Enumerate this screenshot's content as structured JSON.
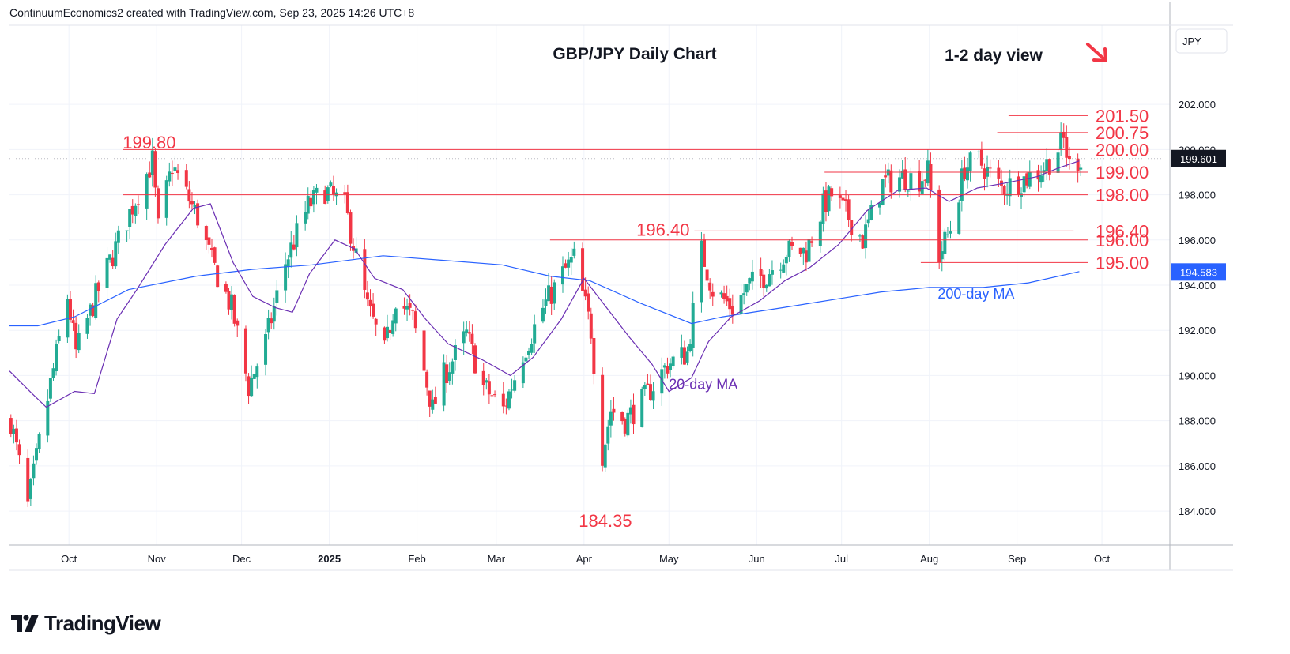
{
  "header": {
    "attribution": "ContinuumEconomics2 created with TradingView.com, Sep 23, 2025 14:26 UTC+8"
  },
  "footer": {
    "brand": "TradingView",
    "logo_icon": "tradingview-logo-icon"
  },
  "colors": {
    "up": "#22ab94",
    "down": "#f23645",
    "ma20": "#6b2fb3",
    "ma200": "#2962ff",
    "level": "#f23645",
    "annotation": "#f23645",
    "ma200_label": "#2962ff"
  },
  "chart_data": {
    "type": "candlestick",
    "title": "GBP/JPY Daily Chart",
    "subtitle": "1-2 day view",
    "currency": "JPY",
    "y_range": [
      182.5,
      205.5
    ],
    "y_ticks": [
      "184.000",
      "186.000",
      "188.000",
      "190.000",
      "192.000",
      "194.000",
      "196.000",
      "198.000",
      "200.000",
      "202.000"
    ],
    "x_range": [
      "2024-09-10",
      "2025-10-25"
    ],
    "x_ticks": [
      {
        "label": "Oct",
        "date": "2024-10-01",
        "bold": false
      },
      {
        "label": "Nov",
        "date": "2024-11-01",
        "bold": false
      },
      {
        "label": "Dec",
        "date": "2024-12-01",
        "bold": false
      },
      {
        "label": "2025",
        "date": "2025-01-01",
        "bold": true
      },
      {
        "label": "Feb",
        "date": "2025-02-01",
        "bold": false
      },
      {
        "label": "Mar",
        "date": "2025-03-01",
        "bold": false
      },
      {
        "label": "Apr",
        "date": "2025-04-01",
        "bold": false
      },
      {
        "label": "May",
        "date": "2025-05-01",
        "bold": false
      },
      {
        "label": "Jun",
        "date": "2025-06-01",
        "bold": false
      },
      {
        "label": "Jul",
        "date": "2025-07-01",
        "bold": false
      },
      {
        "label": "Aug",
        "date": "2025-08-01",
        "bold": false
      },
      {
        "label": "Sep",
        "date": "2025-09-01",
        "bold": false
      },
      {
        "label": "Oct",
        "date": "2025-10-01",
        "bold": false
      }
    ],
    "price_path": [
      [
        "2024-09-10",
        188.0
      ],
      [
        "2024-09-16",
        184.2
      ],
      [
        "2024-09-20",
        187.0
      ],
      [
        "2024-09-30",
        193.5
      ],
      [
        "2024-10-03",
        191.0
      ],
      [
        "2024-10-10",
        193.5
      ],
      [
        "2024-10-23",
        197.5
      ],
      [
        "2024-10-30",
        199.5
      ],
      [
        "2024-11-01",
        196.5
      ],
      [
        "2024-11-06",
        199.3
      ],
      [
        "2024-11-15",
        197.0
      ],
      [
        "2024-11-20",
        195.0
      ],
      [
        "2024-11-27",
        193.0
      ],
      [
        "2024-12-03",
        189.5
      ],
      [
        "2024-12-09",
        191.5
      ],
      [
        "2024-12-16",
        195.0
      ],
      [
        "2024-12-24",
        197.5
      ],
      [
        "2024-12-30",
        198.2
      ],
      [
        "2025-01-06",
        197.5
      ],
      [
        "2025-01-14",
        193.0
      ],
      [
        "2025-01-20",
        191.0
      ],
      [
        "2025-01-24",
        193.5
      ],
      [
        "2025-01-30",
        192.5
      ],
      [
        "2025-02-06",
        188.5
      ],
      [
        "2025-02-10",
        190.0
      ],
      [
        "2025-02-18",
        191.8
      ],
      [
        "2025-02-24",
        189.5
      ],
      [
        "2025-03-03",
        188.5
      ],
      [
        "2025-03-10",
        191.0
      ],
      [
        "2025-03-17",
        193.0
      ],
      [
        "2025-03-24",
        194.5
      ],
      [
        "2025-03-28",
        195.2
      ],
      [
        "2025-04-03",
        192.0
      ],
      [
        "2025-04-07",
        186.5
      ],
      [
        "2025-04-10",
        188.5
      ],
      [
        "2025-04-15",
        188.0
      ],
      [
        "2025-04-22",
        189.0
      ],
      [
        "2025-04-30",
        190.5
      ],
      [
        "2025-05-07",
        191.0
      ],
      [
        "2025-05-12",
        195.5
      ],
      [
        "2025-05-16",
        193.8
      ],
      [
        "2025-05-23",
        193.0
      ],
      [
        "2025-05-29",
        194.0
      ],
      [
        "2025-06-04",
        194.5
      ],
      [
        "2025-06-11",
        195.5
      ],
      [
        "2025-06-18",
        195.5
      ],
      [
        "2025-06-24",
        197.5
      ],
      [
        "2025-06-27",
        198.0
      ],
      [
        "2025-07-03",
        197.0
      ],
      [
        "2025-07-08",
        196.0
      ],
      [
        "2025-07-15",
        198.5
      ],
      [
        "2025-07-22",
        198.8
      ],
      [
        "2025-07-28",
        198.7
      ],
      [
        "2025-07-31",
        199.0
      ],
      [
        "2025-08-04",
        195.3
      ],
      [
        "2025-08-08",
        196.5
      ],
      [
        "2025-08-13",
        199.2
      ],
      [
        "2025-08-18",
        199.5
      ],
      [
        "2025-08-26",
        198.3
      ],
      [
        "2025-09-03",
        198.7
      ],
      [
        "2025-09-08",
        199.0
      ],
      [
        "2025-09-12",
        199.5
      ],
      [
        "2025-09-17",
        200.4
      ],
      [
        "2025-09-19",
        199.3
      ],
      [
        "2025-09-23",
        199.601
      ]
    ],
    "ma20": [
      [
        "2024-09-10",
        190.2
      ],
      [
        "2024-09-18",
        189.2
      ],
      [
        "2024-09-23",
        188.6
      ],
      [
        "2024-10-03",
        189.3
      ],
      [
        "2024-10-10",
        189.2
      ],
      [
        "2024-10-18",
        192.5
      ],
      [
        "2024-10-25",
        193.8
      ],
      [
        "2024-11-04",
        195.8
      ],
      [
        "2024-11-14",
        197.4
      ],
      [
        "2024-11-20",
        197.6
      ],
      [
        "2024-11-28",
        195.0
      ],
      [
        "2024-12-05",
        193.5
      ],
      [
        "2024-12-13",
        193.0
      ],
      [
        "2024-12-19",
        192.8
      ],
      [
        "2024-12-25",
        194.5
      ],
      [
        "2025-01-03",
        196.0
      ],
      [
        "2025-01-10",
        195.6
      ],
      [
        "2025-01-17",
        194.3
      ],
      [
        "2025-01-27",
        193.8
      ],
      [
        "2025-02-04",
        192.5
      ],
      [
        "2025-02-12",
        191.4
      ],
      [
        "2025-02-24",
        190.7
      ],
      [
        "2025-03-06",
        190.0
      ],
      [
        "2025-03-14",
        190.8
      ],
      [
        "2025-03-24",
        192.5
      ],
      [
        "2025-04-01",
        194.3
      ],
      [
        "2025-04-09",
        193.0
      ],
      [
        "2025-04-17",
        191.7
      ],
      [
        "2025-04-25",
        190.5
      ],
      [
        "2025-05-01",
        189.3
      ],
      [
        "2025-05-09",
        189.9
      ],
      [
        "2025-05-15",
        191.5
      ],
      [
        "2025-05-23",
        192.6
      ],
      [
        "2025-06-02",
        193.3
      ],
      [
        "2025-06-11",
        194.2
      ],
      [
        "2025-06-20",
        194.8
      ],
      [
        "2025-06-30",
        195.8
      ],
      [
        "2025-07-10",
        197.3
      ],
      [
        "2025-07-21",
        198.2
      ],
      [
        "2025-07-31",
        198.3
      ],
      [
        "2025-08-08",
        197.7
      ],
      [
        "2025-08-18",
        198.3
      ],
      [
        "2025-08-27",
        198.5
      ],
      [
        "2025-09-08",
        198.8
      ],
      [
        "2025-09-16",
        199.2
      ],
      [
        "2025-09-23",
        199.5
      ]
    ],
    "ma200": [
      [
        "2024-09-10",
        192.2
      ],
      [
        "2024-09-20",
        192.2
      ],
      [
        "2024-10-03",
        192.6
      ],
      [
        "2024-10-22",
        193.8
      ],
      [
        "2024-11-15",
        194.4
      ],
      [
        "2024-12-05",
        194.7
      ],
      [
        "2024-12-26",
        194.9
      ],
      [
        "2025-01-20",
        195.3
      ],
      [
        "2025-02-10",
        195.1
      ],
      [
        "2025-03-03",
        194.9
      ],
      [
        "2025-03-20",
        194.4
      ],
      [
        "2025-04-03",
        194.2
      ],
      [
        "2025-04-21",
        193.2
      ],
      [
        "2025-05-09",
        192.3
      ],
      [
        "2025-05-20",
        192.6
      ],
      [
        "2025-06-10",
        193.0
      ],
      [
        "2025-06-30",
        193.4
      ],
      [
        "2025-07-15",
        193.7
      ],
      [
        "2025-08-01",
        193.9
      ],
      [
        "2025-08-20",
        193.9
      ],
      [
        "2025-09-05",
        194.1
      ],
      [
        "2025-09-23",
        194.6
      ]
    ],
    "levels": [
      {
        "price": 201.5,
        "start": "2025-08-29",
        "label": "201.50"
      },
      {
        "price": 200.75,
        "start": "2025-08-25",
        "label": "200.75"
      },
      {
        "price": 200.0,
        "start": "2024-10-20",
        "label": "200.00"
      },
      {
        "price": 199.0,
        "start": "2025-06-25",
        "label": "199.00"
      },
      {
        "price": 198.0,
        "start": "2024-10-20",
        "label": "198.00"
      },
      {
        "price": 196.4,
        "start": "2025-05-10",
        "end": "2025-09-21",
        "label": "196.40"
      },
      {
        "price": 196.0,
        "start": "2025-03-20",
        "label": "196.00"
      },
      {
        "price": 195.0,
        "start": "2025-07-29",
        "label": "195.00"
      }
    ],
    "annotations": [
      {
        "text": "199.80",
        "date": "2024-10-20",
        "price": 199.8,
        "placement": "above-left"
      },
      {
        "text": "196.40",
        "date": "2025-05-10",
        "price": 196.4,
        "placement": "left"
      },
      {
        "text": "184.35",
        "date": "2025-04-08",
        "price": 184.35,
        "placement": "below"
      }
    ],
    "ma_labels": [
      {
        "text": "20-day MA",
        "date": "2025-05-01",
        "price": 189.4
      },
      {
        "text": "200-day MA",
        "date": "2025-08-04",
        "price": 193.4
      }
    ],
    "last_price": {
      "label": "199.601",
      "value": 199.601
    },
    "ma200_last": {
      "label": "194.583",
      "value": 194.583
    },
    "arrow_icon": "down-right-arrow-icon"
  }
}
